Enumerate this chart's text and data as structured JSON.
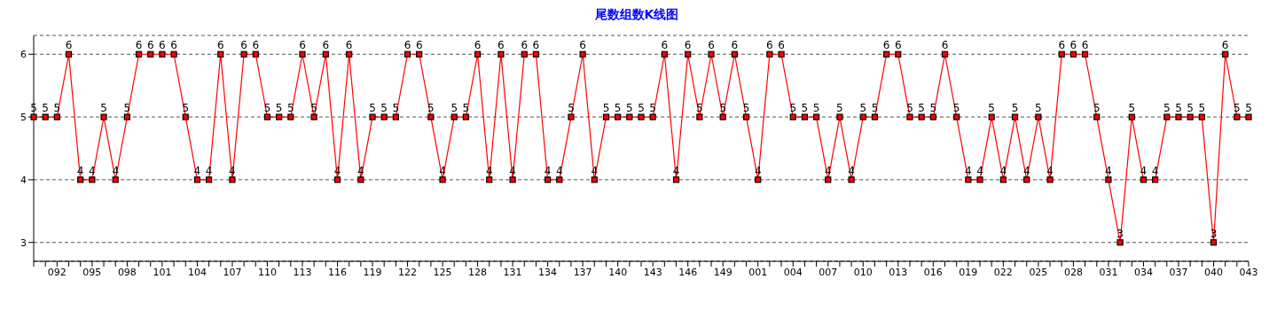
{
  "chart_data": {
    "type": "line",
    "title": "尾数组数K线图",
    "categories": [
      null,
      null,
      "092",
      null,
      null,
      "095",
      null,
      null,
      "098",
      null,
      null,
      "101",
      null,
      null,
      "104",
      null,
      null,
      "107",
      null,
      null,
      "110",
      null,
      null,
      "113",
      null,
      null,
      "116",
      null,
      null,
      "119",
      null,
      null,
      "122",
      null,
      null,
      "125",
      null,
      null,
      "128",
      null,
      null,
      "131",
      null,
      null,
      "134",
      null,
      null,
      "137",
      null,
      null,
      "140",
      null,
      null,
      "143",
      null,
      null,
      "146",
      null,
      null,
      "149",
      null,
      null,
      "001",
      null,
      null,
      "004",
      null,
      null,
      "007",
      null,
      null,
      "010",
      null,
      null,
      "013",
      null,
      null,
      "016",
      null,
      null,
      "019",
      null,
      null,
      "022",
      null,
      null,
      "025",
      null,
      null,
      "028",
      null,
      null,
      "031",
      null,
      null,
      "034",
      null,
      null,
      "037",
      null,
      null,
      "040",
      null,
      null,
      "043"
    ],
    "series": [
      {
        "color": "#ff0000",
        "values": [
          5,
          5,
          5,
          6,
          4,
          4,
          5,
          4,
          5,
          6,
          6,
          6,
          6,
          5,
          4,
          4,
          6,
          4,
          6,
          6,
          5,
          5,
          5,
          6,
          5,
          6,
          4,
          6,
          4,
          5,
          5,
          5,
          6,
          6,
          5,
          4,
          5,
          5,
          6,
          4,
          6,
          4,
          6,
          6,
          4,
          4,
          5,
          6,
          4,
          5,
          5,
          5,
          5,
          5,
          6,
          4,
          6,
          5,
          6,
          5,
          6,
          5,
          4,
          6,
          6,
          5,
          5,
          5,
          4,
          5,
          4,
          5,
          5,
          6,
          6,
          5,
          5,
          5,
          6,
          5,
          4,
          4,
          5,
          4,
          5,
          4,
          5,
          4,
          6,
          6,
          6,
          5,
          4,
          3,
          5,
          4,
          4,
          5,
          5,
          5,
          5,
          3,
          6,
          5,
          5
        ]
      }
    ],
    "ylim": [
      2.7,
      6.3
    ],
    "yticks": [
      3,
      4,
      5,
      6
    ],
    "grid": "y",
    "line_style": "solid",
    "marker": "square",
    "data_labels": true,
    "legend": false
  }
}
